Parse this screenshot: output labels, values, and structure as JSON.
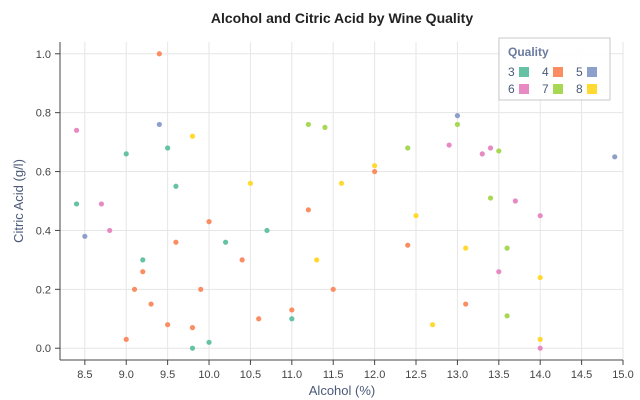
{
  "chart_data": {
    "type": "scatter",
    "title": "Alcohol and Citric Acid by Wine Quality",
    "xlabel": "Alcohol (%)",
    "ylabel": "Citric Acid (g/l)",
    "xlim": [
      8.2,
      15.0
    ],
    "ylim": [
      -0.04,
      1.04
    ],
    "xticks": [
      "8.5",
      "9.0",
      "9.5",
      "10.0",
      "10.5",
      "11.0",
      "11.5",
      "12.0",
      "12.5",
      "13.0",
      "13.5",
      "14.0",
      "14.5",
      "15.0"
    ],
    "yticks": [
      "0.0",
      "0.2",
      "0.4",
      "0.6",
      "0.8",
      "1.0"
    ],
    "grid": true,
    "legend": {
      "title": "Quality",
      "position": "top-right",
      "entries": [
        "3",
        "4",
        "5",
        "6",
        "7",
        "8"
      ]
    },
    "series": [
      {
        "name": "3",
        "color": "#66c2a5",
        "x": [
          8.4,
          9.0,
          9.5,
          9.8,
          10.0,
          10.2,
          10.7,
          11.0,
          9.2,
          9.6
        ],
        "y": [
          0.49,
          0.66,
          0.68,
          0.0,
          0.02,
          0.36,
          0.4,
          0.1,
          0.3,
          0.55
        ]
      },
      {
        "name": "4",
        "color": "#fc8d62",
        "x": [
          9.0,
          9.1,
          9.3,
          9.4,
          9.6,
          9.8,
          10.0,
          10.4,
          10.6,
          11.0,
          11.2,
          11.5,
          12.0,
          12.4,
          13.1,
          9.2,
          9.5,
          9.9
        ],
        "y": [
          0.03,
          0.2,
          0.15,
          1.0,
          0.36,
          0.07,
          0.43,
          0.3,
          0.1,
          0.13,
          0.47,
          0.2,
          0.6,
          0.35,
          0.15,
          0.26,
          0.08,
          0.2
        ]
      },
      {
        "name": "5",
        "color": "#8da0cb",
        "x": [
          8.5,
          14.9,
          13.0,
          9.4
        ],
        "y": [
          0.38,
          0.65,
          0.79,
          0.76
        ]
      },
      {
        "name": "6",
        "color": "#e78ac3",
        "x": [
          8.4,
          8.7,
          8.8,
          13.3,
          13.4,
          13.5,
          14.0,
          13.7,
          12.9,
          14.0
        ],
        "y": [
          0.74,
          0.49,
          0.4,
          0.66,
          0.68,
          0.26,
          0.45,
          0.5,
          0.69,
          0.0
        ]
      },
      {
        "name": "7",
        "color": "#a6d854",
        "x": [
          11.2,
          11.4,
          13.6,
          13.6,
          13.0,
          12.4,
          13.4,
          13.5
        ],
        "y": [
          0.76,
          0.75,
          0.34,
          0.11,
          0.76,
          0.68,
          0.51,
          0.67
        ]
      },
      {
        "name": "8",
        "color": "#ffd92f",
        "x": [
          9.8,
          10.5,
          11.6,
          12.0,
          12.5,
          12.7,
          13.1,
          14.0,
          14.0,
          11.3
        ],
        "y": [
          0.72,
          0.56,
          0.56,
          0.62,
          0.45,
          0.08,
          0.34,
          0.24,
          0.03,
          0.3
        ]
      }
    ]
  }
}
